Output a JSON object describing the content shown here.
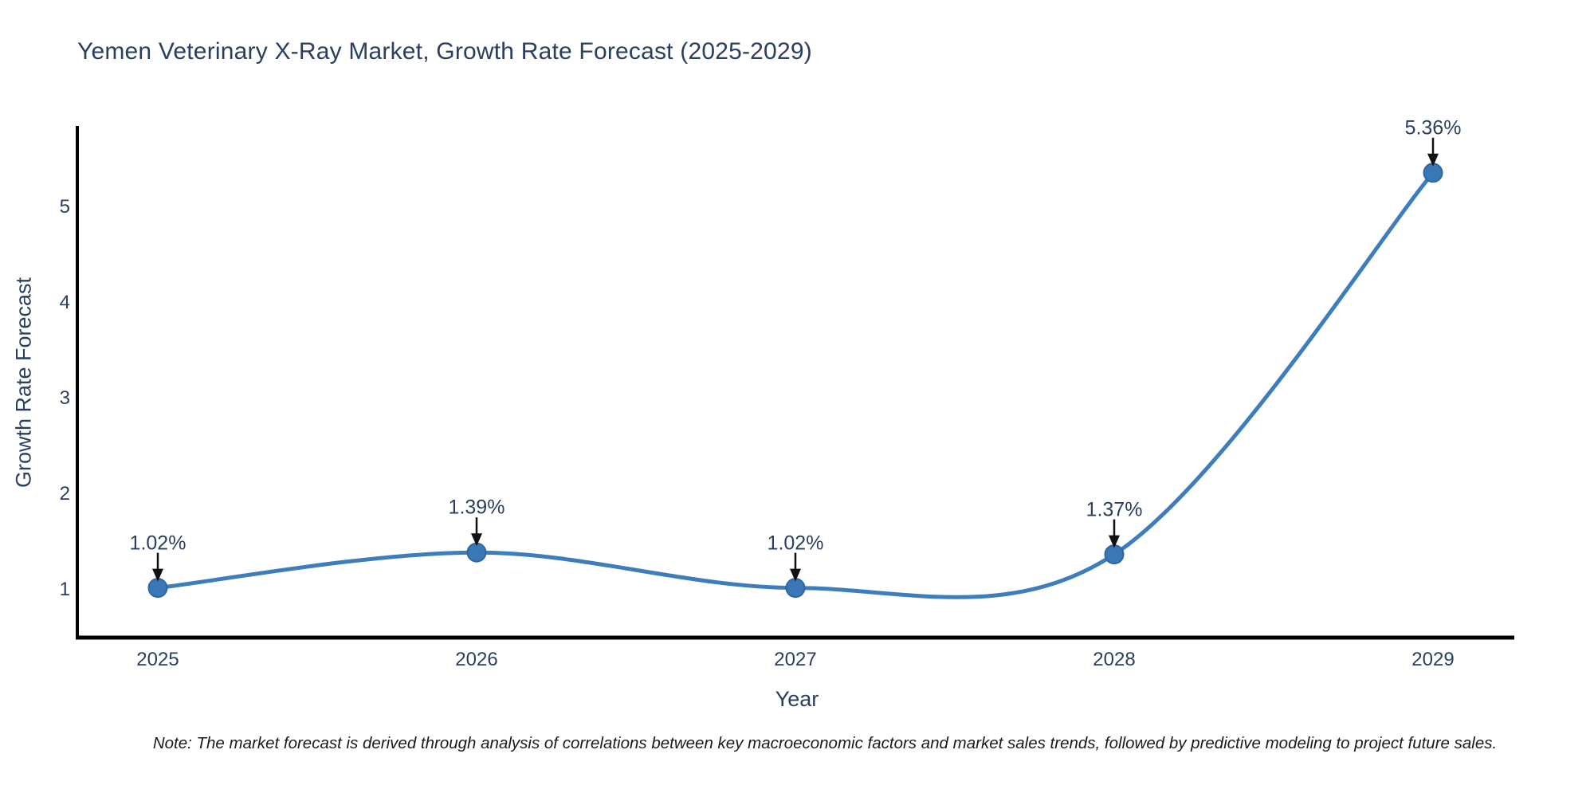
{
  "page": {
    "background": "#ffffff"
  },
  "chart_data": {
    "type": "line",
    "title": "Yemen Veterinary X-Ray Market, Growth Rate Forecast (2025-2029)",
    "xlabel": "Year",
    "ylabel": "Growth Rate Forecast",
    "categories": [
      "2025",
      "2026",
      "2027",
      "2028",
      "2029"
    ],
    "values": [
      1.02,
      1.39,
      1.02,
      1.37,
      5.36
    ],
    "point_labels": [
      "1.02%",
      "1.39%",
      "1.02%",
      "1.37%",
      "5.36%"
    ],
    "yticks": [
      1,
      2,
      3,
      4,
      5
    ],
    "ylim": [
      0.5,
      5.83
    ],
    "grid": false,
    "legend_position": "none",
    "line_shape": "spline",
    "colors": {
      "line": "#3d7dbc",
      "marker": "#3a77b6",
      "marker_edge": "#2f66a3",
      "axis": "#000000",
      "text": "#2a3f5f",
      "arrow": "#111111"
    }
  },
  "note": {
    "text": "Note: The market forecast is derived through analysis of correlations between key macroeconomic factors and market sales trends, followed by predictive modeling to project future sales."
  }
}
